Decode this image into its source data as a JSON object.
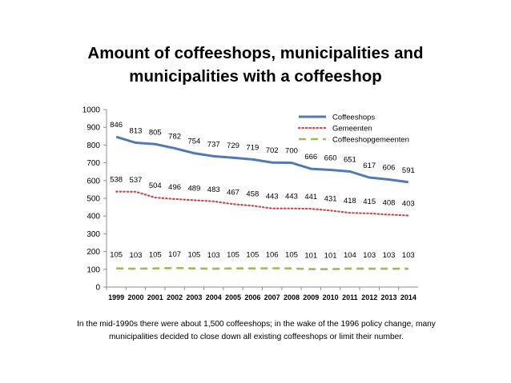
{
  "title_lines": [
    "Amount of coffeeshops, municipalities and",
    "municipalities with a coffeeshop"
  ],
  "caption_lines": [
    "In the mid-1990s there were about 1,500 coffeeshops; in the wake of the 1996 policy change, many",
    "municipalities decided to close down all existing coffeeshops or limit their number."
  ],
  "chart_data": {
    "type": "line",
    "title": "Amount of coffeeshops, municipalities and municipalities with a coffeeshop",
    "xlabel": "",
    "ylabel": "",
    "x": [
      "1999",
      "2000",
      "2001",
      "2002",
      "2003",
      "2004",
      "2005",
      "2006",
      "2007",
      "2008",
      "2009",
      "2010",
      "2011",
      "2012",
      "2013",
      "2014"
    ],
    "ylim": [
      0,
      1000
    ],
    "yticks": [
      0,
      100,
      200,
      300,
      400,
      500,
      600,
      700,
      800,
      900,
      1000
    ],
    "grid": false,
    "legend": "top-right",
    "series": [
      {
        "name": "Coffeeshops",
        "color": "#4f7ab2",
        "style": "solid",
        "values": [
          846,
          813,
          805,
          782,
          754,
          737,
          729,
          719,
          702,
          700,
          666,
          660,
          651,
          617,
          606,
          591
        ]
      },
      {
        "name": "Gemeenten",
        "color": "#c0504d",
        "style": "dotted",
        "values": [
          538,
          537,
          504,
          496,
          489,
          483,
          467,
          458,
          443,
          443,
          441,
          431,
          418,
          415,
          408,
          403
        ]
      },
      {
        "name": "Coffeeshopgemeenten",
        "color": "#9bbb59",
        "style": "dashed",
        "values": [
          105,
          103,
          105,
          107,
          105,
          103,
          105,
          105,
          106,
          105,
          101,
          101,
          104,
          103,
          103,
          103
        ]
      }
    ]
  }
}
